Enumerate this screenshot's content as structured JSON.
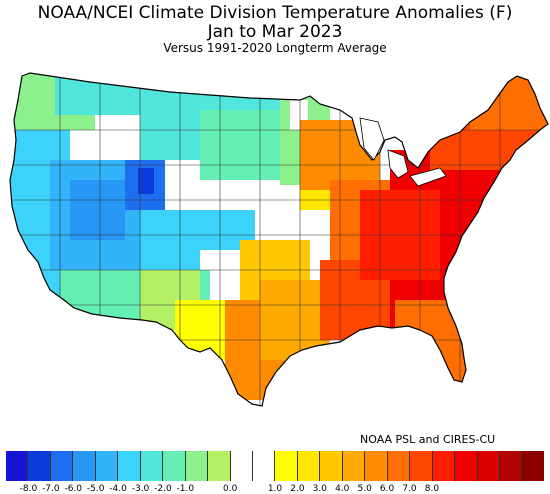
{
  "header": {
    "title_line1": "NOAA/NCEI Climate Division Temperature Anomalies (F)",
    "title_line2": "Jan to Mar 2023",
    "subtitle": "Versus 1991-2020 Longterm Average"
  },
  "credit": "NOAA PSL and CIRES-CU",
  "legend": {
    "colors": [
      "#1414d2",
      "#0a3cdc",
      "#1e6ef0",
      "#2896f5",
      "#32b4fa",
      "#3cd2fa",
      "#50e6dc",
      "#64f0b4",
      "#8cf08c",
      "#b4f064",
      "#ffffff",
      "#ffffff",
      "#ffff00",
      "#ffe600",
      "#ffc800",
      "#ffaa00",
      "#ff8c00",
      "#ff6e00",
      "#ff4600",
      "#ff1e00",
      "#f00000",
      "#dc0000",
      "#b40000",
      "#8c0000"
    ],
    "ticks": [
      "-8.0",
      "-7.0",
      "-6.0",
      "-5.0",
      "-4.0",
      "-3.0",
      "-2.0",
      "-1.0",
      "0.0",
      "1.0",
      "2.0",
      "3.0",
      "4.0",
      "5.0",
      "6.0",
      "7.0",
      "8.0"
    ]
  }
}
